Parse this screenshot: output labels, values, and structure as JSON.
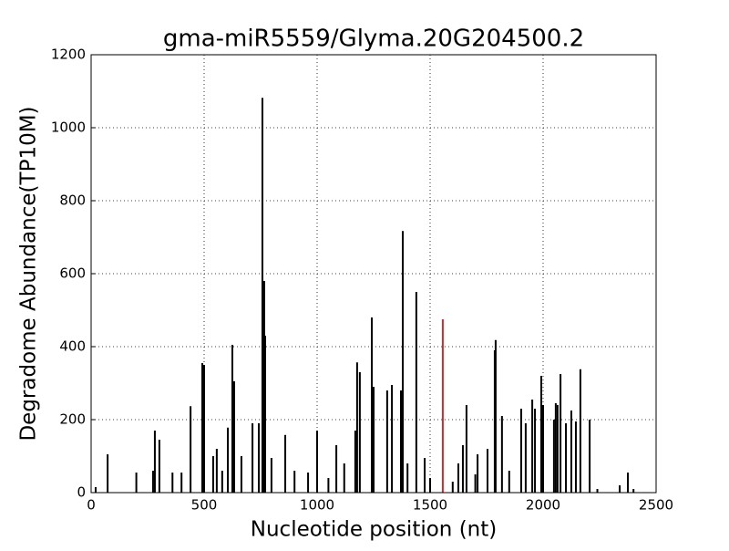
{
  "chart_data": {
    "type": "stem",
    "title": "gma-miR5559/Glyma.20G204500.2",
    "x_label": "Nucleotide position (nt)",
    "y_label": "Degradome Abundance(TP10M)",
    "xlim": [
      0,
      2500
    ],
    "xticks": [
      0,
      500,
      1000,
      1500,
      2000,
      2500
    ],
    "ylim": [
      0,
      1200
    ],
    "yticks": [
      0,
      200,
      400,
      600,
      800,
      1000,
      1200
    ],
    "grid": true,
    "series": [
      {
        "color": "#000000",
        "x": [
          20,
          73,
          200,
          274,
          282,
          302,
          360,
          400,
          440,
          492,
          500,
          540,
          556,
          580,
          605,
          625,
          633,
          665,
          714,
          742,
          758,
          766,
          770,
          798,
          859,
          900,
          960,
          1000,
          1050,
          1085,
          1120,
          1169,
          1177,
          1189,
          1242,
          1250,
          1310,
          1331,
          1371,
          1379,
          1400,
          1439,
          1476,
          1500,
          1600,
          1625,
          1645,
          1661,
          1700,
          1710,
          1754,
          1786,
          1790,
          1818,
          1850,
          1903,
          1923,
          1952,
          1964,
          1992,
          2000,
          2048,
          2056,
          2064,
          2077,
          2101,
          2125,
          2145,
          2165,
          2206,
          2240,
          2339,
          2375,
          2400
        ],
        "values": [
          15,
          105,
          55,
          60,
          170,
          145,
          55,
          55,
          237,
          355,
          350,
          100,
          120,
          60,
          178,
          405,
          305,
          100,
          190,
          190,
          1082,
          580,
          430,
          95,
          158,
          60,
          55,
          170,
          40,
          130,
          80,
          170,
          357,
          330,
          480,
          290,
          280,
          295,
          280,
          717,
          80,
          550,
          95,
          40,
          30,
          80,
          130,
          240,
          50,
          105,
          120,
          390,
          418,
          210,
          60,
          230,
          190,
          255,
          230,
          320,
          240,
          200,
          245,
          240,
          325,
          190,
          225,
          195,
          338,
          200,
          10,
          20,
          55,
          10
        ]
      },
      {
        "color": "#d62728",
        "x": [
          1556
        ],
        "values": [
          475
        ]
      }
    ]
  }
}
